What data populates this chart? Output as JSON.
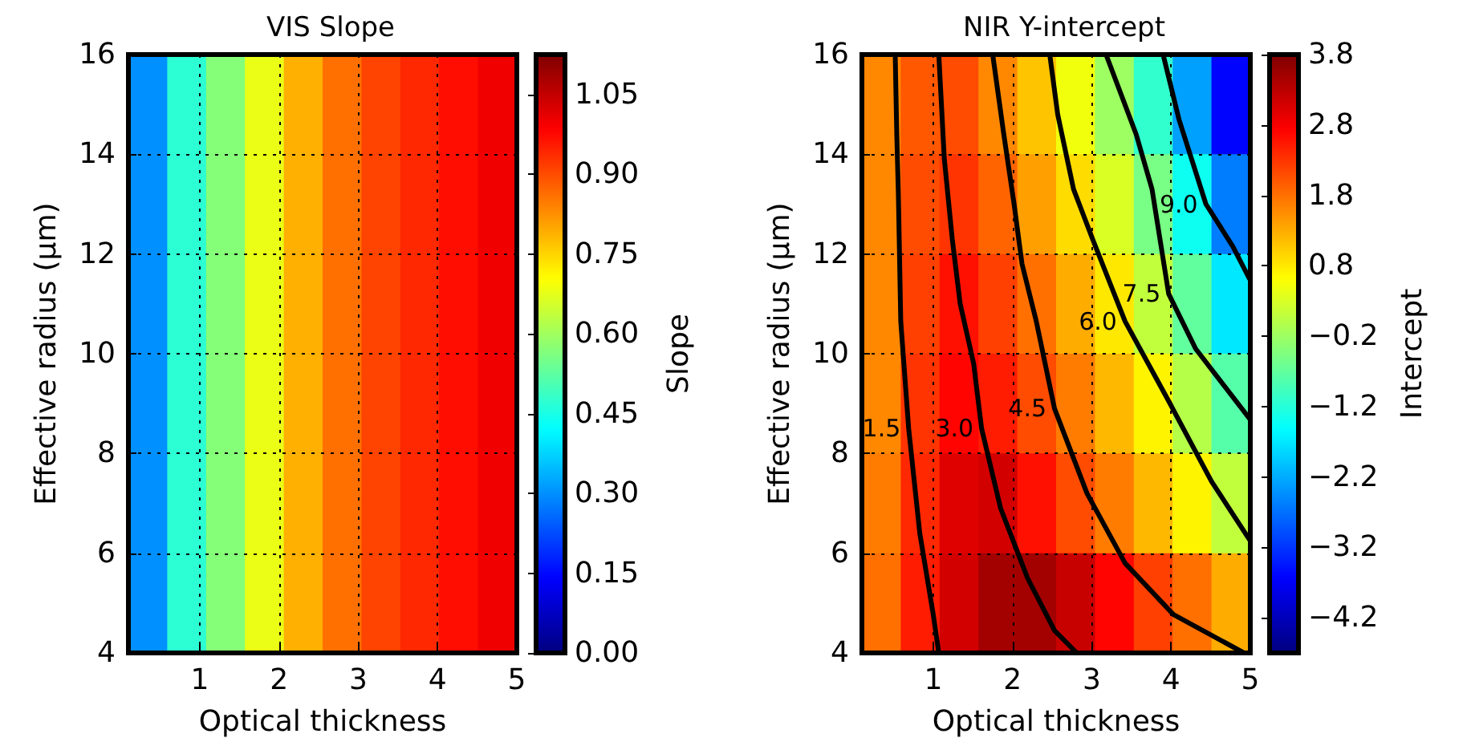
{
  "chart_data": [
    {
      "type": "heatmap",
      "title": "VIS Slope",
      "xlabel": "Optical thickness",
      "ylabel": "Effective radius (μm)",
      "clabel": "Slope",
      "x": [
        0.345,
        0.835,
        1.325,
        1.815,
        2.305,
        2.795,
        3.285,
        3.775,
        4.265,
        4.755
      ],
      "cells": [
        [
          0.3,
          0.47,
          0.57,
          0.68,
          0.79,
          0.86,
          0.91,
          0.94,
          0.97,
          1.0
        ],
        [
          0.3,
          0.47,
          0.57,
          0.68,
          0.79,
          0.86,
          0.91,
          0.94,
          0.97,
          1.0
        ],
        [
          0.3,
          0.47,
          0.57,
          0.68,
          0.79,
          0.86,
          0.91,
          0.94,
          0.97,
          1.0
        ],
        [
          0.3,
          0.47,
          0.57,
          0.68,
          0.79,
          0.86,
          0.91,
          0.94,
          0.97,
          1.0
        ],
        [
          0.3,
          0.47,
          0.57,
          0.68,
          0.79,
          0.86,
          0.91,
          0.94,
          0.97,
          1.0
        ],
        [
          0.3,
          0.47,
          0.57,
          0.68,
          0.79,
          0.86,
          0.91,
          0.94,
          0.97,
          1.0
        ]
      ],
      "clim": [
        0,
        1.125
      ],
      "cticks": [
        {
          "value": 0,
          "label": "0.00"
        },
        {
          "value": 0.15,
          "label": "0.15"
        },
        {
          "value": 0.3,
          "label": "0.30"
        },
        {
          "value": 0.45,
          "label": "0.45"
        },
        {
          "value": 0.6,
          "label": "0.60"
        },
        {
          "value": 0.75,
          "label": "0.75"
        },
        {
          "value": 0.9,
          "label": "0.90"
        },
        {
          "value": 1.05,
          "label": "1.05"
        }
      ],
      "xlim": [
        0.1,
        5
      ],
      "xticks": [
        1,
        2,
        3,
        4,
        5
      ],
      "ylim": [
        4,
        16
      ],
      "yticks": [
        4,
        6,
        8,
        10,
        12,
        14,
        16
      ],
      "grid": true
    },
    {
      "type": "heatmap",
      "title": "NIR Y-intercept",
      "xlabel": "Optical thickness",
      "ylabel": "Effective radius (μm)",
      "clabel": "Intercept",
      "x": [
        0.345,
        0.835,
        1.325,
        1.815,
        2.305,
        2.795,
        3.285,
        3.775,
        4.265,
        4.755
      ],
      "cells": [
        [
          1.6,
          2.0,
          2.1,
          1.6,
          1.1,
          0.5,
          -0.2,
          -1.1,
          -2.3,
          -3.6
        ],
        [
          1.6,
          2.1,
          2.3,
          1.9,
          1.4,
          0.9,
          0.3,
          -0.5,
          -1.4,
          -2.6
        ],
        [
          1.6,
          2.2,
          2.6,
          2.2,
          1.8,
          1.3,
          0.8,
          0.1,
          -0.7,
          -1.7
        ],
        [
          1.6,
          2.3,
          2.7,
          2.5,
          2.1,
          1.7,
          1.2,
          0.7,
          0.0,
          -0.8
        ],
        [
          1.7,
          2.4,
          3.0,
          3.1,
          2.6,
          2.1,
          1.7,
          1.2,
          0.7,
          0.1
        ],
        [
          1.8,
          2.5,
          3.1,
          3.5,
          3.5,
          3.2,
          2.7,
          2.2,
          1.8,
          1.3
        ]
      ],
      "clim": [
        -4.7,
        3.8
      ],
      "cticks": [
        {
          "value": -4.2,
          "label": "−4.2"
        },
        {
          "value": -3.2,
          "label": "−3.2"
        },
        {
          "value": -2.2,
          "label": "−2.2"
        },
        {
          "value": -1.2,
          "label": "−1.2"
        },
        {
          "value": -0.2,
          "label": "−0.2"
        },
        {
          "value": 0.8,
          "label": "0.8"
        },
        {
          "value": 1.8,
          "label": "1.8"
        },
        {
          "value": 2.8,
          "label": "2.8"
        },
        {
          "value": 3.8,
          "label": "3.8"
        }
      ],
      "xlim": [
        0.1,
        5
      ],
      "xticks": [
        1,
        2,
        3,
        4,
        5
      ],
      "ylim": [
        4,
        16
      ],
      "yticks": [
        4,
        6,
        8,
        10,
        12,
        14,
        16
      ],
      "grid": true,
      "series": [
        {
          "type": "line",
          "name": "1.5",
          "color": "#000000",
          "x": [
            0.52,
            0.54,
            0.56,
            0.59,
            0.69,
            0.83,
            1.0,
            1.07
          ],
          "values": [
            16,
            14.4,
            13.2,
            10.65,
            8.5,
            6.4,
            4.77,
            4
          ]
        },
        {
          "type": "line",
          "name": "3.0",
          "color": "#000000",
          "x": [
            1.07,
            1.14,
            1.24,
            1.34,
            1.51,
            1.61,
            1.85,
            2.19,
            2.53,
            2.81
          ],
          "values": [
            16,
            13.9,
            12.3,
            11.0,
            9.8,
            8.5,
            6.9,
            5.5,
            4.45,
            4
          ]
        },
        {
          "type": "line",
          "name": "4.5",
          "color": "#000000",
          "x": [
            1.75,
            1.89,
            2.02,
            2.12,
            2.3,
            2.53,
            2.94,
            3.42,
            4.03,
            4.92
          ],
          "values": [
            16,
            14.4,
            13.0,
            11.8,
            10.65,
            8.9,
            7.2,
            5.8,
            4.77,
            4
          ]
        },
        {
          "type": "line",
          "name": "6.0",
          "color": "#000000",
          "x": [
            2.47,
            2.57,
            2.77,
            3.01,
            3.42,
            3.97,
            4.51,
            4.99
          ],
          "values": [
            16,
            14.8,
            13.3,
            12.3,
            10.65,
            9.05,
            7.44,
            6.27
          ]
        },
        {
          "type": "line",
          "name": "7.5",
          "color": "#000000",
          "x": [
            3.18,
            3.56,
            3.76,
            3.97,
            4.31,
            4.65,
            4.99
          ],
          "values": [
            16,
            14.4,
            13.3,
            11.2,
            10.1,
            9.4,
            8.7
          ]
        },
        {
          "type": "line",
          "name": "9.0",
          "color": "#000000",
          "x": [
            3.9,
            4.1,
            4.44,
            4.78,
            4.99
          ],
          "values": [
            16,
            14.7,
            13.0,
            12.15,
            11.5
          ]
        }
      ],
      "line_style": "solid"
    }
  ]
}
